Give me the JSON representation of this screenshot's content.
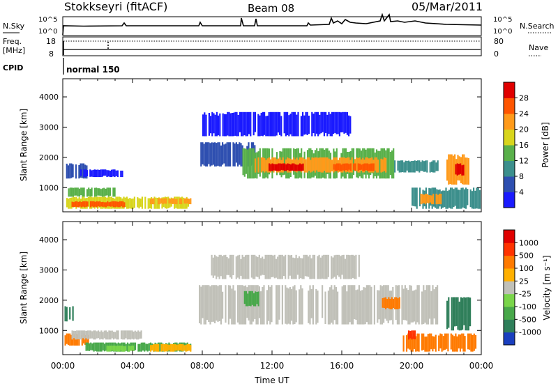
{
  "header": {
    "station": "Stokkseyri (fitACF)",
    "beam": "Beam 08",
    "date": "05/Mar/2011"
  },
  "noise_panel": {
    "left_label": "N.Sky",
    "right_label": "N.Search",
    "ticks": [
      "10^5",
      "10^0"
    ],
    "legend_style": "dotted"
  },
  "freq_panel": {
    "left_label_1": "Freq.",
    "left_label_2": "[MHz]",
    "left_ticks": [
      18,
      8
    ],
    "right_label": "Nave",
    "right_ticks": [
      80,
      0
    ]
  },
  "cpid": {
    "label": "CPID",
    "value": "normal 150"
  },
  "chart_data": [
    {
      "type": "heatmap",
      "name": "power",
      "ylabel": "Slant Range [km]",
      "y_ticks": [
        1000,
        2000,
        3000,
        4000
      ],
      "ylim": [
        200,
        4600
      ],
      "colorbar_label": "Power [dB]",
      "colorbar_ticks": [
        4,
        8,
        12,
        16,
        20,
        24,
        28
      ],
      "colorbar_colors": [
        "#1a1aff",
        "#2e4fb0",
        "#3c8f8c",
        "#59b04a",
        "#d8d51c",
        "#ff9a1a",
        "#ff5500",
        "#e00000"
      ],
      "regions": [
        {
          "t_start": 0.1,
          "t_end": 1.4,
          "r_start": 1300,
          "r_end": 1800,
          "level": 1
        },
        {
          "t_start": 1.0,
          "t_end": 3.4,
          "r_start": 1350,
          "r_end": 1600,
          "level": 0
        },
        {
          "t_start": 0.2,
          "t_end": 7.3,
          "r_start": 300,
          "r_end": 700,
          "level": 4
        },
        {
          "t_start": 0.5,
          "t_end": 3.5,
          "r_start": 350,
          "r_end": 550,
          "level": 6
        },
        {
          "t_start": 5.0,
          "t_end": 7.3,
          "r_start": 450,
          "r_end": 650,
          "level": 5
        },
        {
          "t_start": 0.3,
          "t_end": 3.0,
          "r_start": 700,
          "r_end": 1000,
          "level": 3
        },
        {
          "t_start": 7.8,
          "t_end": 11.0,
          "r_start": 1700,
          "r_end": 2500,
          "level": 1
        },
        {
          "t_start": 10.3,
          "t_end": 19.0,
          "r_start": 1300,
          "r_end": 2300,
          "level": 3
        },
        {
          "t_start": 11.0,
          "t_end": 18.5,
          "r_start": 1500,
          "r_end": 2000,
          "level": 5
        },
        {
          "t_start": 11.8,
          "t_end": 13.8,
          "r_start": 1550,
          "r_end": 1800,
          "level": 7
        },
        {
          "t_start": 15.5,
          "t_end": 17.8,
          "r_start": 1550,
          "r_end": 1800,
          "level": 6
        },
        {
          "t_start": 8.0,
          "t_end": 16.5,
          "r_start": 2700,
          "r_end": 3500,
          "level": 0
        },
        {
          "t_start": 19.0,
          "t_end": 21.5,
          "r_start": 1500,
          "r_end": 1900,
          "level": 2
        },
        {
          "t_start": 22.0,
          "t_end": 23.4,
          "r_start": 1100,
          "r_end": 2100,
          "level": 5
        },
        {
          "t_start": 22.5,
          "t_end": 23.0,
          "r_start": 1400,
          "r_end": 1800,
          "level": 7
        },
        {
          "t_start": 20.0,
          "t_end": 23.9,
          "r_start": 300,
          "r_end": 1000,
          "level": 2
        },
        {
          "t_start": 20.5,
          "t_end": 21.7,
          "r_start": 450,
          "r_end": 800,
          "level": 5
        }
      ]
    },
    {
      "type": "heatmap",
      "name": "velocity",
      "ylabel": "Slant Range [km]",
      "y_ticks": [
        1000,
        2000,
        3000,
        4000
      ],
      "ylim": [
        200,
        4600
      ],
      "xlabel": "Time UT",
      "x_ticks": [
        "00:00",
        "04:00",
        "08:00",
        "12:00",
        "16:00",
        "20:00",
        "00:00"
      ],
      "colorbar_label": "Velocity [m s⁻¹]",
      "colorbar_ticks": [
        1000,
        500,
        100,
        25,
        -25,
        -100,
        -500,
        -1000
      ],
      "colorbar_colors": [
        "#1a3fbf",
        "#2f7f5a",
        "#48a84a",
        "#7ad54a",
        "#c0c0b8",
        "#ffb000",
        "#ff7a00",
        "#ff3300",
        "#e00000"
      ],
      "regions": [
        {
          "t_start": 0.1,
          "t_end": 0.6,
          "r_start": 1300,
          "r_end": 1800,
          "level": 1
        },
        {
          "t_start": 0.1,
          "t_end": 1.5,
          "r_start": 500,
          "r_end": 900,
          "level": 6
        },
        {
          "t_start": 1.3,
          "t_end": 7.3,
          "r_start": 300,
          "r_end": 600,
          "level": 2
        },
        {
          "t_start": 2.5,
          "t_end": 4.0,
          "r_start": 300,
          "r_end": 500,
          "level": 3
        },
        {
          "t_start": 5.0,
          "t_end": 7.3,
          "r_start": 300,
          "r_end": 550,
          "level": 5
        },
        {
          "t_start": 0.5,
          "t_end": 4.5,
          "r_start": 700,
          "r_end": 1000,
          "level": 4
        },
        {
          "t_start": 7.8,
          "t_end": 21.5,
          "r_start": 1200,
          "r_end": 2500,
          "level": 4
        },
        {
          "t_start": 8.5,
          "t_end": 17.0,
          "r_start": 2700,
          "r_end": 3500,
          "level": 4
        },
        {
          "t_start": 10.3,
          "t_end": 11.2,
          "r_start": 1800,
          "r_end": 2300,
          "level": 2
        },
        {
          "t_start": 18.3,
          "t_end": 19.3,
          "r_start": 1700,
          "r_end": 2100,
          "level": 6
        },
        {
          "t_start": 22.0,
          "t_end": 23.4,
          "r_start": 1000,
          "r_end": 2100,
          "level": 1
        },
        {
          "t_start": 19.5,
          "t_end": 23.8,
          "r_start": 300,
          "r_end": 900,
          "level": 6
        },
        {
          "t_start": 19.8,
          "t_end": 20.2,
          "r_start": 700,
          "r_end": 1000,
          "level": 7
        }
      ]
    }
  ]
}
